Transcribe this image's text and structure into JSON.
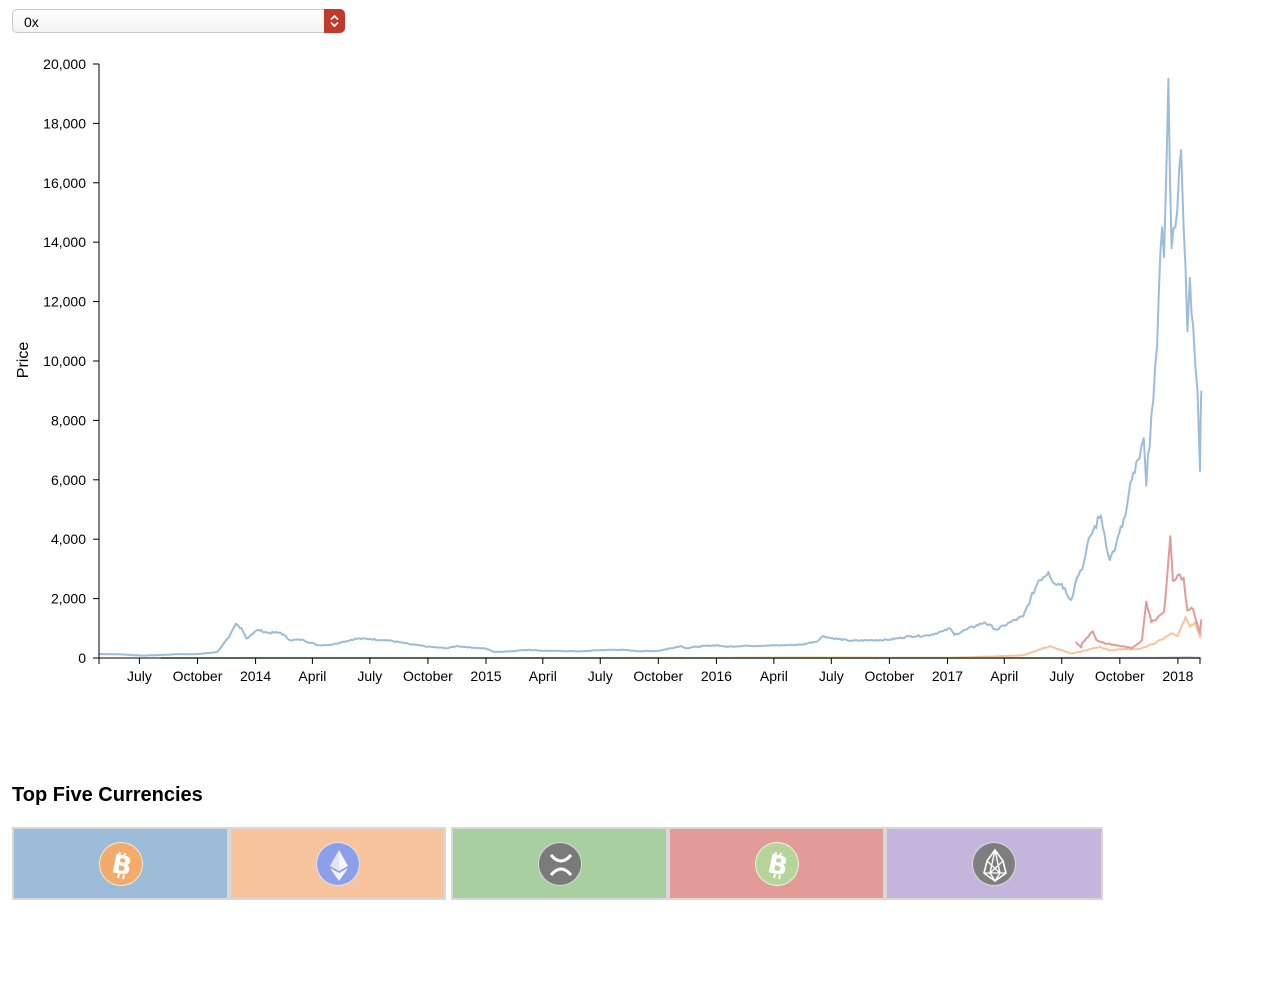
{
  "selector": {
    "value": "0x"
  },
  "section_title": "Top Five Currencies",
  "colors": {
    "btc": "#9dbcd7",
    "eth": "#f8c49d",
    "xrp": "#a8cfa0",
    "bch": "#e29b97",
    "eos": "#c5b4dc"
  },
  "tiles": [
    {
      "icon": "bitcoin-icon",
      "color": "#9dbcd7",
      "coin_color": "#f2ab6b"
    },
    {
      "icon": "ethereum-icon",
      "color": "#f8c49d",
      "coin_color": "#8c9fe8"
    },
    {
      "icon": "ripple-icon",
      "color": "#a8cfa0",
      "coin_color": "#7a7a7a"
    },
    {
      "icon": "bitcoin-cash-icon",
      "color": "#e29b97",
      "coin_color": "#b5d59a"
    },
    {
      "icon": "eos-icon",
      "color": "#c5b4dc",
      "coin_color": "#7e7e7e"
    }
  ],
  "chart_data": {
    "type": "line",
    "title": "",
    "xlabel": "",
    "ylabel": "Price",
    "ylim": [
      0,
      20000
    ],
    "xlim": [
      "2013-04-28",
      "2018-02-05"
    ],
    "y_ticks": [
      0,
      2000,
      4000,
      6000,
      8000,
      10000,
      12000,
      14000,
      16000,
      18000,
      20000
    ],
    "y_tick_labels": [
      "0",
      "2,000",
      "4,000",
      "6,000",
      "8,000",
      "10,000",
      "12,000",
      "14,000",
      "16,000",
      "18,000",
      "20,000"
    ],
    "x_ticks": [
      {
        "date": "2013-07-01",
        "label": "July"
      },
      {
        "date": "2013-10-01",
        "label": "October"
      },
      {
        "date": "2014-01-01",
        "label": "2014"
      },
      {
        "date": "2014-04-01",
        "label": "April"
      },
      {
        "date": "2014-07-01",
        "label": "July"
      },
      {
        "date": "2014-10-01",
        "label": "October"
      },
      {
        "date": "2015-01-01",
        "label": "2015"
      },
      {
        "date": "2015-04-01",
        "label": "April"
      },
      {
        "date": "2015-07-01",
        "label": "July"
      },
      {
        "date": "2015-10-01",
        "label": "October"
      },
      {
        "date": "2016-01-01",
        "label": "2016"
      },
      {
        "date": "2016-04-01",
        "label": "April"
      },
      {
        "date": "2016-07-01",
        "label": "July"
      },
      {
        "date": "2016-10-01",
        "label": "October"
      },
      {
        "date": "2017-01-01",
        "label": "2017"
      },
      {
        "date": "2017-04-01",
        "label": "April"
      },
      {
        "date": "2017-07-01",
        "label": "July"
      },
      {
        "date": "2017-10-01",
        "label": "October"
      },
      {
        "date": "2018-01-01",
        "label": "2018"
      }
    ],
    "grid": false,
    "series": [
      {
        "key": "btc",
        "color": "#9dbcd7",
        "points": [
          [
            "2013-04-28",
            135
          ],
          [
            "2013-06-01",
            125
          ],
          [
            "2013-07-05",
            80
          ],
          [
            "2013-08-01",
            100
          ],
          [
            "2013-09-01",
            130
          ],
          [
            "2013-10-01",
            130
          ],
          [
            "2013-11-01",
            200
          ],
          [
            "2013-11-20",
            700
          ],
          [
            "2013-12-01",
            1150
          ],
          [
            "2013-12-10",
            1000
          ],
          [
            "2013-12-18",
            650
          ],
          [
            "2013-12-25",
            780
          ],
          [
            "2014-01-05",
            950
          ],
          [
            "2014-01-20",
            850
          ],
          [
            "2014-02-10",
            850
          ],
          [
            "2014-02-25",
            600
          ],
          [
            "2014-03-15",
            620
          ],
          [
            "2014-04-10",
            430
          ],
          [
            "2014-05-01",
            450
          ],
          [
            "2014-05-20",
            550
          ],
          [
            "2014-06-10",
            650
          ],
          [
            "2014-07-01",
            640
          ],
          [
            "2014-08-01",
            590
          ],
          [
            "2014-09-01",
            470
          ],
          [
            "2014-10-01",
            380
          ],
          [
            "2014-11-01",
            330
          ],
          [
            "2014-11-15",
            400
          ],
          [
            "2014-12-01",
            370
          ],
          [
            "2015-01-01",
            315
          ],
          [
            "2015-01-15",
            200
          ],
          [
            "2015-02-10",
            230
          ],
          [
            "2015-03-10",
            280
          ],
          [
            "2015-04-01",
            245
          ],
          [
            "2015-05-01",
            235
          ],
          [
            "2015-06-01",
            225
          ],
          [
            "2015-07-01",
            265
          ],
          [
            "2015-08-01",
            280
          ],
          [
            "2015-09-01",
            230
          ],
          [
            "2015-10-01",
            240
          ],
          [
            "2015-11-05",
            400
          ],
          [
            "2015-11-15",
            330
          ],
          [
            "2015-12-01",
            380
          ],
          [
            "2016-01-01",
            430
          ],
          [
            "2016-01-15",
            380
          ],
          [
            "2016-02-15",
            410
          ],
          [
            "2016-03-15",
            415
          ],
          [
            "2016-04-15",
            430
          ],
          [
            "2016-05-15",
            450
          ],
          [
            "2016-06-10",
            580
          ],
          [
            "2016-06-18",
            740
          ],
          [
            "2016-07-01",
            670
          ],
          [
            "2016-08-01",
            580
          ],
          [
            "2016-09-01",
            600
          ],
          [
            "2016-10-01",
            615
          ],
          [
            "2016-11-01",
            730
          ],
          [
            "2016-12-01",
            760
          ],
          [
            "2016-12-25",
            900
          ],
          [
            "2017-01-05",
            1000
          ],
          [
            "2017-01-12",
            780
          ],
          [
            "2017-02-01",
            970
          ],
          [
            "2017-03-01",
            1200
          ],
          [
            "2017-03-20",
            950
          ],
          [
            "2017-04-10",
            1200
          ],
          [
            "2017-05-01",
            1400
          ],
          [
            "2017-05-25",
            2600
          ],
          [
            "2017-06-10",
            2900
          ],
          [
            "2017-06-20",
            2500
          ],
          [
            "2017-07-01",
            2500
          ],
          [
            "2017-07-16",
            1950
          ],
          [
            "2017-07-25",
            2700
          ],
          [
            "2017-08-05",
            3200
          ],
          [
            "2017-08-15",
            4100
          ],
          [
            "2017-09-01",
            4800
          ],
          [
            "2017-09-15",
            3300
          ],
          [
            "2017-09-25",
            3800
          ],
          [
            "2017-10-10",
            4800
          ],
          [
            "2017-10-20",
            6000
          ],
          [
            "2017-11-01",
            6700
          ],
          [
            "2017-11-08",
            7400
          ],
          [
            "2017-11-12",
            5800
          ],
          [
            "2017-11-20",
            8200
          ],
          [
            "2017-11-29",
            10500
          ],
          [
            "2017-12-07",
            14500
          ],
          [
            "2017-12-10",
            13500
          ],
          [
            "2017-12-17",
            19500
          ],
          [
            "2017-12-22",
            13800
          ],
          [
            "2017-12-28",
            14500
          ],
          [
            "2018-01-06",
            17100
          ],
          [
            "2018-01-10",
            14500
          ],
          [
            "2018-01-16",
            11000
          ],
          [
            "2018-01-20",
            12800
          ],
          [
            "2018-01-25",
            11200
          ],
          [
            "2018-02-01",
            9000
          ],
          [
            "2018-02-05",
            6300
          ],
          [
            "2018-02-06",
            8000
          ],
          [
            "2018-02-07",
            9000
          ]
        ]
      },
      {
        "key": "eth",
        "color": "#f8c49d",
        "points": [
          [
            "2015-08-07",
            3
          ],
          [
            "2016-01-01",
            1
          ],
          [
            "2016-03-15",
            12
          ],
          [
            "2016-06-15",
            15
          ],
          [
            "2017-01-01",
            8
          ],
          [
            "2017-03-15",
            50
          ],
          [
            "2017-05-01",
            90
          ],
          [
            "2017-06-12",
            400
          ],
          [
            "2017-07-16",
            150
          ],
          [
            "2017-08-01",
            220
          ],
          [
            "2017-08-30",
            380
          ],
          [
            "2017-09-15",
            250
          ],
          [
            "2017-10-01",
            300
          ],
          [
            "2017-11-01",
            300
          ],
          [
            "2017-11-24",
            480
          ],
          [
            "2017-12-12",
            700
          ],
          [
            "2017-12-20",
            820
          ],
          [
            "2018-01-01",
            750
          ],
          [
            "2018-01-13",
            1380
          ],
          [
            "2018-01-20",
            1050
          ],
          [
            "2018-01-28",
            1200
          ],
          [
            "2018-02-05",
            700
          ],
          [
            "2018-02-07",
            850
          ]
        ]
      },
      {
        "key": "xrp",
        "color": "#a8cfa0",
        "points": [
          [
            "2013-08-04",
            0.5
          ],
          [
            "2015-01-01",
            0.5
          ],
          [
            "2017-01-01",
            0.5
          ],
          [
            "2017-05-15",
            0.4
          ],
          [
            "2017-12-20",
            1.2
          ],
          [
            "2018-01-04",
            3.3
          ],
          [
            "2018-02-07",
            0.7
          ]
        ]
      },
      {
        "key": "bch",
        "color": "#e29b97",
        "points": [
          [
            "2017-07-23",
            550
          ],
          [
            "2017-08-01",
            350
          ],
          [
            "2017-08-02",
            500
          ],
          [
            "2017-08-19",
            900
          ],
          [
            "2017-08-25",
            600
          ],
          [
            "2017-09-10",
            480
          ],
          [
            "2017-10-01",
            410
          ],
          [
            "2017-10-20",
            330
          ],
          [
            "2017-11-05",
            600
          ],
          [
            "2017-11-12",
            1900
          ],
          [
            "2017-11-20",
            1200
          ],
          [
            "2017-12-01",
            1400
          ],
          [
            "2017-12-10",
            1550
          ],
          [
            "2017-12-20",
            4100
          ],
          [
            "2017-12-24",
            2600
          ],
          [
            "2018-01-01",
            2800
          ],
          [
            "2018-01-10",
            2700
          ],
          [
            "2018-01-16",
            1600
          ],
          [
            "2018-01-25",
            1650
          ],
          [
            "2018-02-05",
            850
          ],
          [
            "2018-02-07",
            1300
          ]
        ]
      },
      {
        "key": "eos",
        "color": "#c5b4dc",
        "points": [
          [
            "2017-07-01",
            3
          ],
          [
            "2017-10-01",
            1
          ],
          [
            "2017-12-01",
            5
          ],
          [
            "2018-01-13",
            20
          ],
          [
            "2018-02-07",
            8
          ]
        ]
      }
    ]
  }
}
